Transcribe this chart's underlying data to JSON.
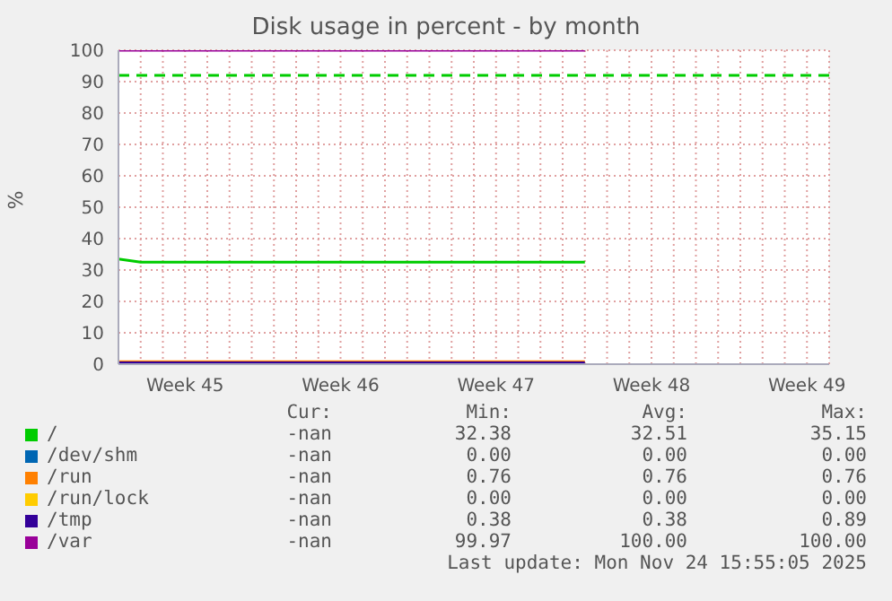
{
  "chart_data": {
    "type": "line",
    "title": "Disk usage in percent - by month",
    "ylabel": "%",
    "categories": [
      null,
      null,
      null,
      "Week 45",
      null,
      null,
      null,
      null,
      null,
      null,
      "Week 46",
      null,
      null,
      null,
      null,
      null,
      null,
      "Week 47",
      null,
      null,
      null,
      null,
      null,
      null,
      "Week 48",
      null,
      null,
      null,
      null,
      null,
      null,
      "Week 49",
      null
    ],
    "ylim": [
      0,
      100
    ],
    "yticks": [
      0,
      10,
      20,
      30,
      40,
      50,
      60,
      70,
      80,
      90,
      100
    ],
    "grid": true,
    "marker": "none",
    "line_style": "solid",
    "legend": "bottom",
    "series": [
      {
        "name": "/",
        "color": "#00cc00",
        "values": [
          33.5,
          32.5,
          32.5,
          32.5,
          32.5,
          32.5,
          32.5,
          32.5,
          32.5,
          32.5,
          32.5,
          32.5,
          32.5,
          32.5,
          32.5,
          32.5,
          32.5,
          32.5,
          32.5,
          32.5,
          32.5,
          32.5,
          null,
          null,
          null,
          null,
          null,
          null,
          null,
          null,
          null,
          null,
          null
        ]
      },
      {
        "name": "/dev/shm",
        "color": "#0066b3",
        "values": [
          null,
          null,
          null,
          null,
          null,
          null,
          null,
          null,
          null,
          null,
          null,
          null,
          null,
          null,
          null,
          null,
          null,
          null,
          null,
          null,
          null,
          null,
          null,
          null,
          null,
          null,
          null,
          null,
          null,
          null,
          null,
          null,
          null
        ]
      },
      {
        "name": "/run",
        "color": "#ff8000",
        "values": [
          0.8,
          0.8,
          0.8,
          0.8,
          0.8,
          0.8,
          0.8,
          0.8,
          0.8,
          0.8,
          0.8,
          0.8,
          0.8,
          0.8,
          0.8,
          0.8,
          0.8,
          0.8,
          0.8,
          0.8,
          0.8,
          0.8,
          null,
          null,
          null,
          null,
          null,
          null,
          null,
          null,
          null,
          null,
          null
        ]
      },
      {
        "name": "/run/lock",
        "color": "#ffcc00",
        "values": [
          null,
          null,
          null,
          null,
          null,
          null,
          null,
          null,
          null,
          null,
          null,
          null,
          null,
          null,
          null,
          null,
          null,
          null,
          null,
          null,
          null,
          null,
          null,
          null,
          null,
          null,
          null,
          null,
          null,
          null,
          null,
          null,
          null
        ]
      },
      {
        "name": "/tmp",
        "color": "#330099",
        "values": [
          0.4,
          0.4,
          0.4,
          0.4,
          0.4,
          0.4,
          0.4,
          0.4,
          0.4,
          0.4,
          0.4,
          0.4,
          0.4,
          0.4,
          0.4,
          0.4,
          0.4,
          0.4,
          0.4,
          0.4,
          0.4,
          0.4,
          null,
          null,
          null,
          null,
          null,
          null,
          null,
          null,
          null,
          null,
          null
        ]
      },
      {
        "name": "/var",
        "color": "#990099",
        "values": [
          100,
          100,
          100,
          100,
          100,
          100,
          100,
          100,
          100,
          100,
          100,
          100,
          100,
          100,
          100,
          100,
          100,
          100,
          100,
          100,
          100,
          100,
          null,
          null,
          null,
          null,
          null,
          null,
          null,
          null,
          null,
          null,
          null
        ]
      }
    ],
    "ref_lines": [
      {
        "axis": "y",
        "value": 92,
        "color": "#00cc00",
        "line_style": "dashed"
      }
    ],
    "annotations": [
      "Cur:",
      "Min:",
      "Avg:",
      "Max:",
      "-nan",
      "32.38",
      "32.51",
      "35.15",
      "-nan",
      "0.00",
      "0.00",
      "0.00",
      "-nan",
      "0.76",
      "0.76",
      "0.76",
      "-nan",
      "0.00",
      "0.00",
      "0.00",
      "-nan",
      "0.38",
      "0.38",
      "0.89",
      "-nan",
      "99.97",
      "100.00",
      "100.00",
      "Last update: Mon Nov 24 15:55:05 2025"
    ]
  }
}
